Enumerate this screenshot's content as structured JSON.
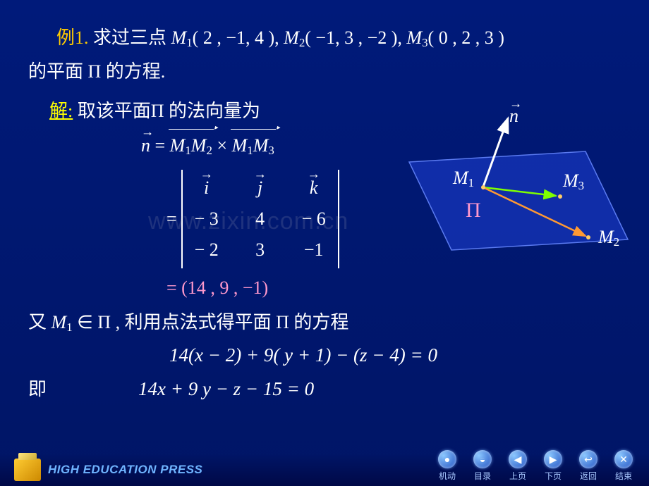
{
  "line1": {
    "example_label": "例1.",
    "text1": " 求过三点 ",
    "M1": "M",
    "M1s": "1",
    "p1": "( 2 , −1, 4 ),  ",
    "M2": "M",
    "M2s": "2",
    "p2": "( −1, 3 , −2 ),  ",
    "M3": "M",
    "M3s": "3",
    "p3": "( 0 , 2 , 3 )"
  },
  "line2": {
    "text": "的平面 Π 的方程."
  },
  "line3": {
    "solve": "解:",
    "text": " 取该平面Π 的法向量为"
  },
  "cross": {
    "n": "n",
    "eq": " = ",
    "a": "M",
    "a1": "1",
    "b": "M",
    "b1": "2",
    "times": " × ",
    "c": "M",
    "c1": "1",
    "d": "M",
    "d1": "3"
  },
  "det": {
    "eq": "= ",
    "r0c0": "i",
    "r0c1": "j",
    "r0c2": "k",
    "r1c0": "− 3",
    "r1c1": "4",
    "r1c2": "− 6",
    "r2c0": "− 2",
    "r2c1": "3",
    "r2c2": "−1"
  },
  "result": "= (14 , 9 , −1)",
  "line4": {
    "pre": "又 ",
    "M1": "M",
    "M1s": "1",
    "in": " ∈ Π ,",
    "post": " 利用点法式得平面 Π 的方程"
  },
  "eq1": "14(x − 2) + 9( y + 1) − (z − 4) = 0",
  "line5": {
    "pre": "即",
    "eq": "14x + 9 y − z − 15 = 0"
  },
  "watermark": "www.zixin.com.cn",
  "diagram": {
    "n_label": "n",
    "M1": "M",
    "M1s": "1",
    "M2": "M",
    "M2s": "2",
    "M3": "M",
    "M3s": "3",
    "Pi": "Π",
    "plane_fill": "#1434b0",
    "plane_stroke": "#5a7af0",
    "n_color": "#ffffff",
    "v1_color": "#7fff00",
    "v2_color": "#ff9933"
  },
  "footer": {
    "brand": "HIGH EDUCATION PRESS",
    "buttons": [
      {
        "icon": "●",
        "label": "机动"
      },
      {
        "icon": "◒",
        "label": "目录"
      },
      {
        "icon": "◀",
        "label": "上页"
      },
      {
        "icon": "▶",
        "label": "下页"
      },
      {
        "icon": "↩",
        "label": "返回"
      },
      {
        "icon": "✕",
        "label": "结束"
      }
    ]
  }
}
